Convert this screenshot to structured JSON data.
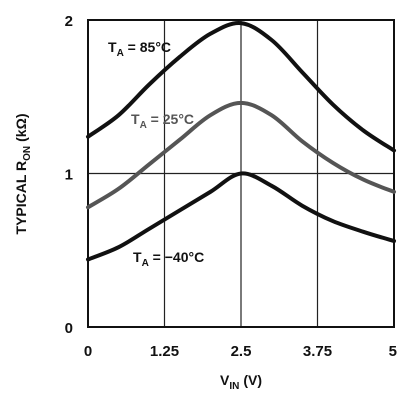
{
  "chart_data": {
    "type": "line",
    "ylabel": {
      "main": "TYPICAL R",
      "sub": "ON",
      "unit": "(kΩ)"
    },
    "xlabel": {
      "main": "V",
      "sub": "IN",
      "unit": "(V)"
    },
    "xlim": [
      0,
      5
    ],
    "ylim": [
      0,
      2
    ],
    "x_ticks": [
      "0",
      "1.25",
      "2.5",
      "3.75",
      "5"
    ],
    "y_ticks": [
      "0",
      "1",
      "2"
    ],
    "grid": true,
    "series": [
      {
        "name": "TA = 85°C",
        "label_main": "T",
        "label_sub": "A",
        "label_rest": " = 85°C",
        "color": "#111111",
        "points": [
          [
            0,
            1.24
          ],
          [
            0.5,
            1.38
          ],
          [
            1.0,
            1.58
          ],
          [
            1.5,
            1.76
          ],
          [
            2.0,
            1.91
          ],
          [
            2.5,
            1.98
          ],
          [
            3.0,
            1.87
          ],
          [
            3.5,
            1.66
          ],
          [
            4.0,
            1.45
          ],
          [
            4.5,
            1.28
          ],
          [
            5.0,
            1.15
          ]
        ]
      },
      {
        "name": "TA = 25°C",
        "label_main": "T",
        "label_sub": "A",
        "label_rest": " = 25°C",
        "color": "#555555",
        "points": [
          [
            0,
            0.78
          ],
          [
            0.5,
            0.9
          ],
          [
            1.0,
            1.06
          ],
          [
            1.5,
            1.22
          ],
          [
            2.0,
            1.38
          ],
          [
            2.5,
            1.46
          ],
          [
            3.0,
            1.38
          ],
          [
            3.5,
            1.21
          ],
          [
            4.0,
            1.07
          ],
          [
            4.5,
            0.96
          ],
          [
            5.0,
            0.88
          ]
        ]
      },
      {
        "name": "TA = -40°C",
        "label_main": "T",
        "label_sub": "A",
        "label_rest": " = −40°C",
        "color": "#111111",
        "points": [
          [
            0,
            0.44
          ],
          [
            0.5,
            0.52
          ],
          [
            1.0,
            0.64
          ],
          [
            1.5,
            0.76
          ],
          [
            2.0,
            0.88
          ],
          [
            2.5,
            1.0
          ],
          [
            3.0,
            0.92
          ],
          [
            3.5,
            0.79
          ],
          [
            4.0,
            0.69
          ],
          [
            4.5,
            0.62
          ],
          [
            5.0,
            0.56
          ]
        ]
      }
    ]
  }
}
